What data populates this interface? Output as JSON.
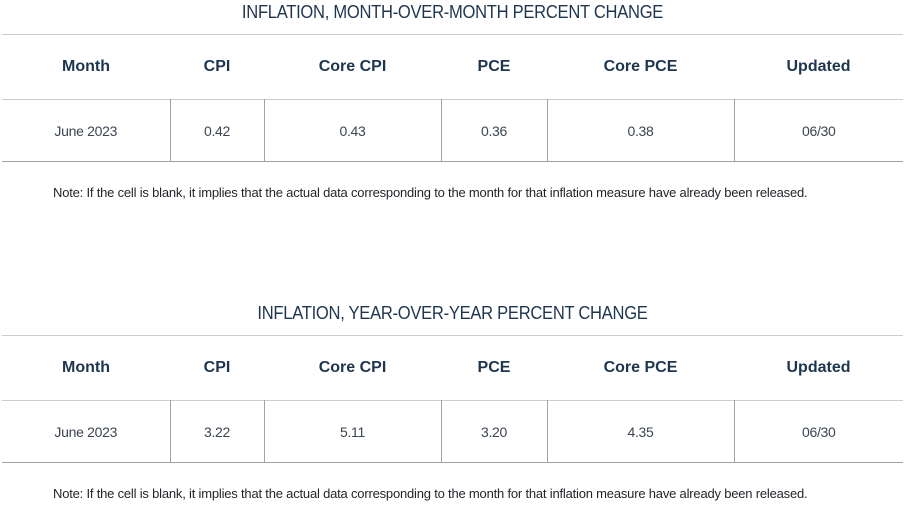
{
  "mom": {
    "title": "INFLATION, MONTH-OVER-MONTH PERCENT CHANGE",
    "headers": [
      "Month",
      "CPI",
      "Core CPI",
      "PCE",
      "Core PCE",
      "Updated"
    ],
    "row": [
      "June 2023",
      "0.42",
      "0.43",
      "0.36",
      "0.38",
      "06/30"
    ],
    "note": "Note: If the cell is blank, it implies that the actual data corresponding to the month for that inflation measure have already been released."
  },
  "yoy": {
    "title": "INFLATION, YEAR-OVER-YEAR PERCENT CHANGE",
    "headers": [
      "Month",
      "CPI",
      "Core CPI",
      "PCE",
      "Core PCE",
      "Updated"
    ],
    "row": [
      "June 2023",
      "3.22",
      "5.11",
      "3.20",
      "4.35",
      "06/30"
    ],
    "note": "Note: If the cell is blank, it implies that the actual data corresponding to the month for that inflation measure have already been released."
  }
}
